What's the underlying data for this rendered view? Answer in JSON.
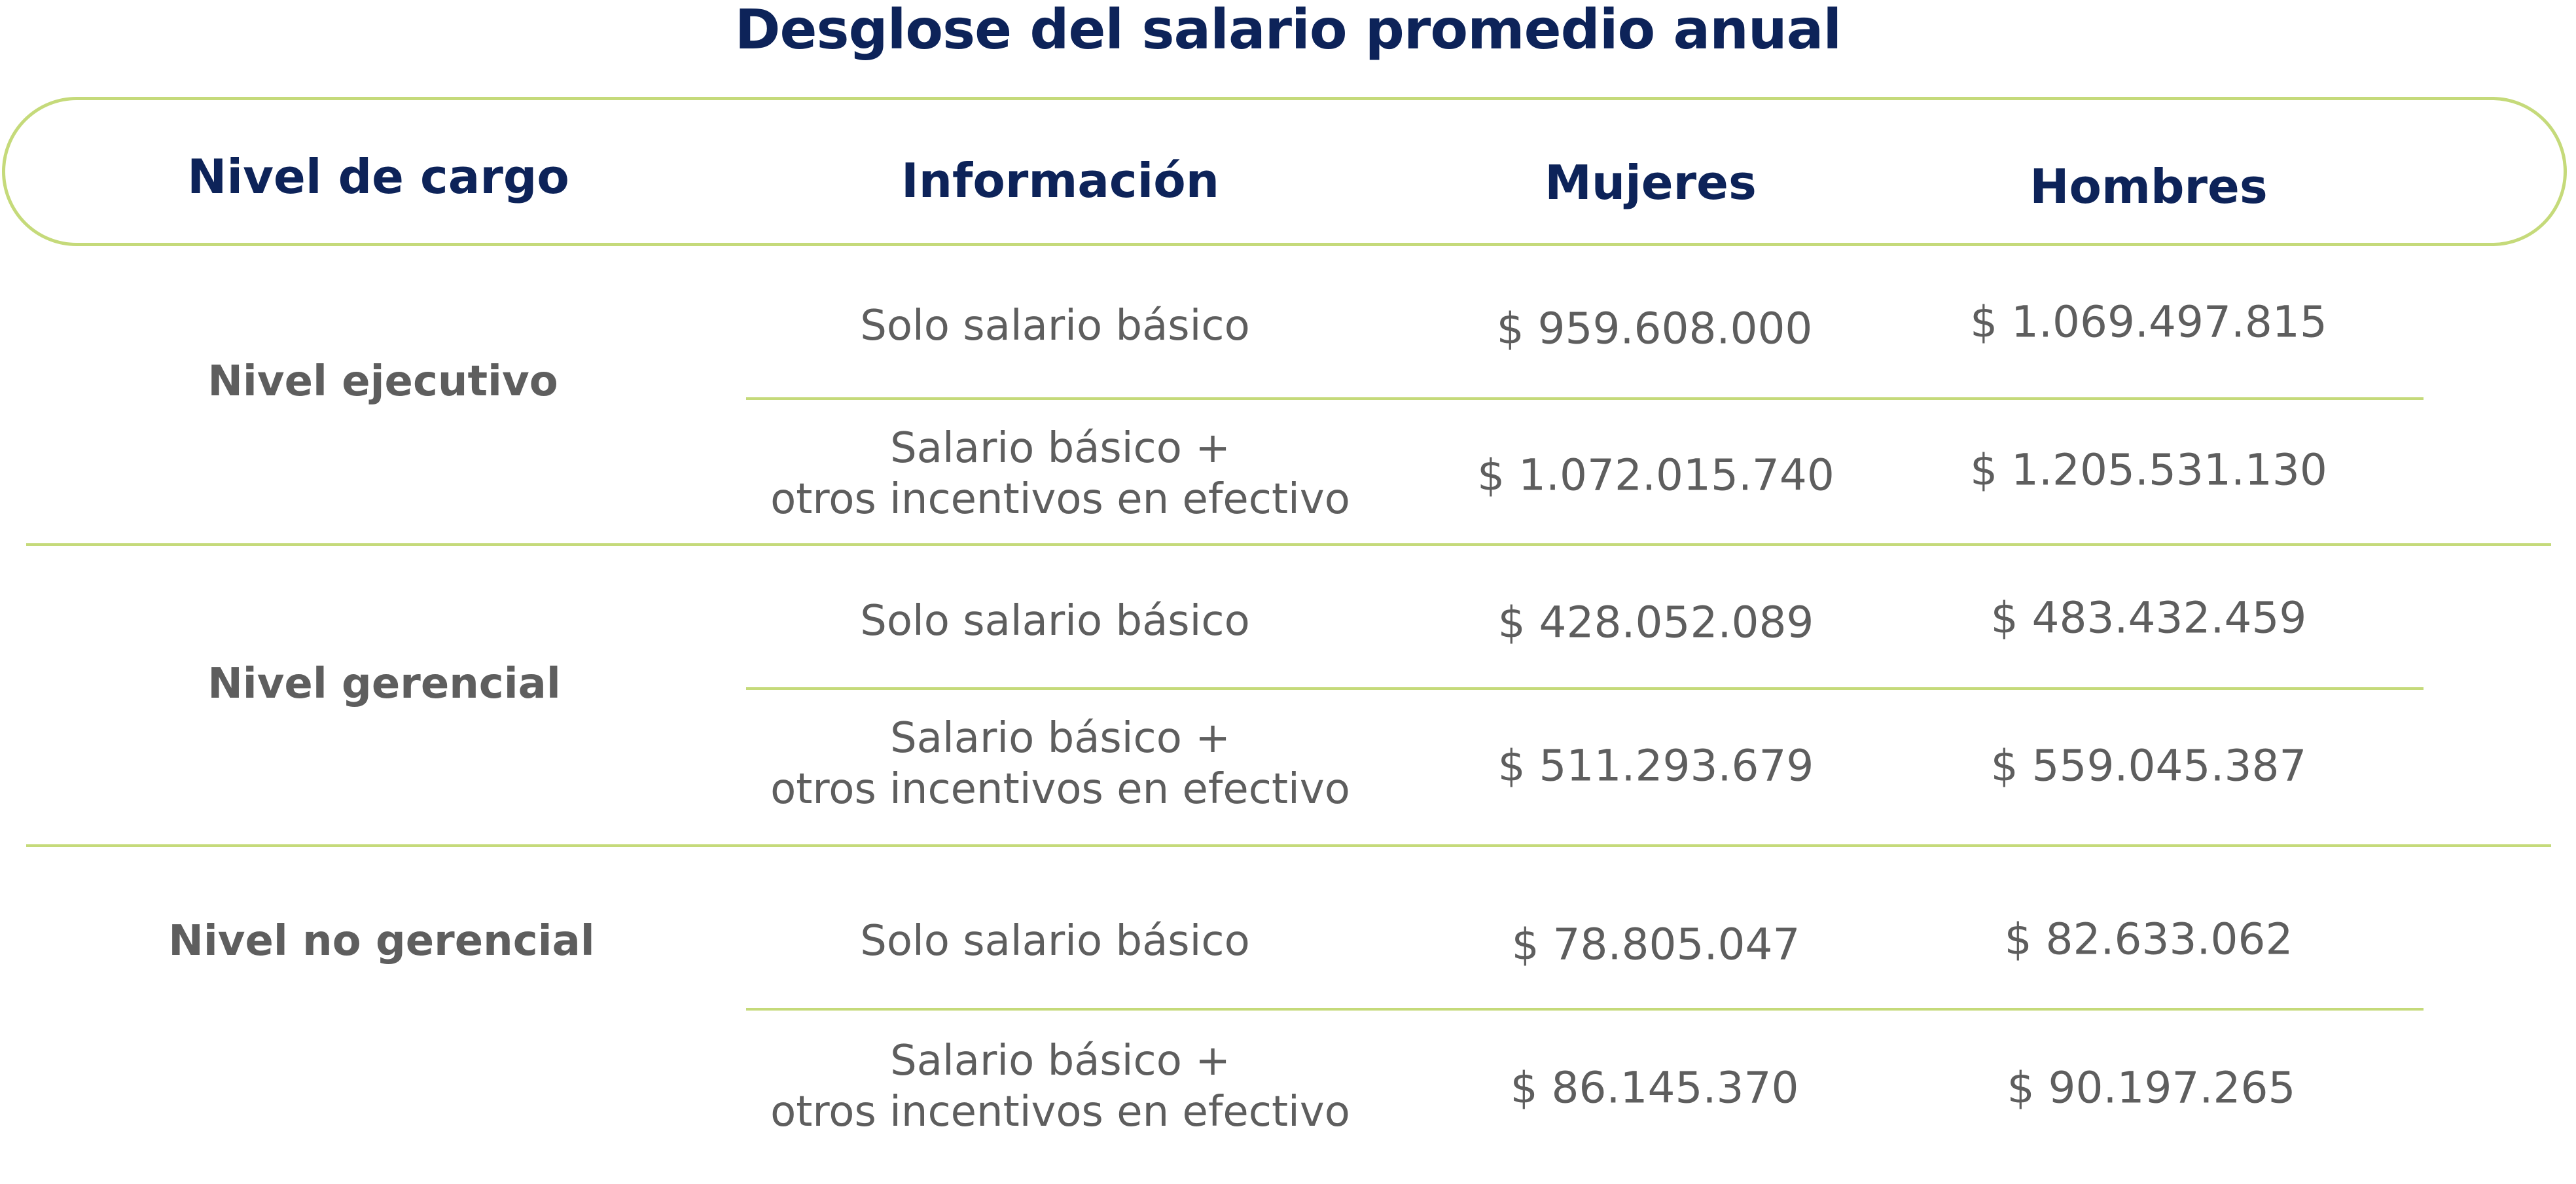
{
  "title": "Desglose del salario promedio anual",
  "colors": {
    "title": "#0d2359",
    "header_text": "#0d2359",
    "body_text": "#5e5e5e",
    "accent_lines": "#c5da7a"
  },
  "headers": {
    "level": "Nivel de cargo",
    "info": "Información",
    "women": "Mujeres",
    "men": "Hombres"
  },
  "rows": [
    {
      "level": "Nivel ejecutivo",
      "items": [
        {
          "info_line1": "Solo salario básico",
          "info_line2": "",
          "women": "$ 959.608.000",
          "men": "$ 1.069.497.815"
        },
        {
          "info_line1": "Salario básico +",
          "info_line2": "otros incentivos en efectivo",
          "women": "$ 1.072.015.740",
          "men": "$ 1.205.531.130"
        }
      ]
    },
    {
      "level": "Nivel gerencial",
      "items": [
        {
          "info_line1": "Solo salario básico",
          "info_line2": "",
          "women": "$ 428.052.089",
          "men": "$ 483.432.459"
        },
        {
          "info_line1": "Salario básico +",
          "info_line2": "otros incentivos en efectivo",
          "women": "$ 511.293.679",
          "men": "$ 559.045.387"
        }
      ]
    },
    {
      "level": "Nivel no gerencial",
      "items": [
        {
          "info_line1": "Solo salario básico",
          "info_line2": "",
          "women": "$ 78.805.047",
          "men": "$ 82.633.062"
        },
        {
          "info_line1": "Salario básico +",
          "info_line2": "otros incentivos en efectivo",
          "women": "$ 86.145.370",
          "men": "$ 90.197.265"
        }
      ]
    }
  ]
}
